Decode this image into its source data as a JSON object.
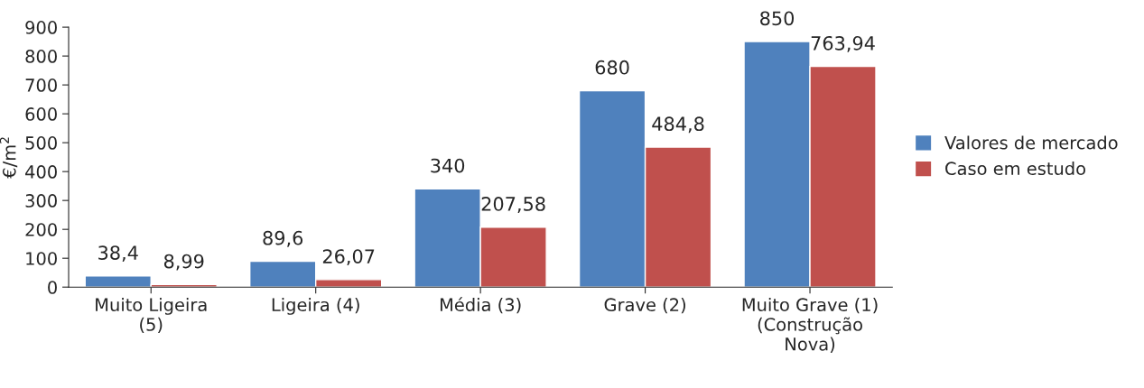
{
  "chart_data": {
    "type": "bar",
    "ylabel": "€/m$^{2}$",
    "categories": [
      "Muito Ligeira\n(5)",
      "Ligeira (4)",
      "Média (3)",
      "Grave (2)",
      "Muito Grave (1)\n(Construção\nNova)"
    ],
    "series": [
      {
        "name": "Valores de mercado",
        "color": "#4f81bd",
        "values": [
          38.4,
          89.6,
          340,
          680,
          850
        ],
        "value_labels": [
          "38,4",
          "89,6",
          "340",
          "680",
          "850"
        ]
      },
      {
        "name": "Caso em estudo",
        "color": "#c0504d",
        "values": [
          8.99,
          26.07,
          207.58,
          484.8,
          763.94
        ],
        "value_labels": [
          "8,99",
          "26,07",
          "207,58",
          "484,8",
          "763,94"
        ]
      }
    ],
    "ylim": [
      0,
      900
    ],
    "yticks": [
      0,
      100,
      200,
      300,
      400,
      500,
      600,
      700,
      800,
      900
    ],
    "grid": false,
    "legend": "right"
  }
}
